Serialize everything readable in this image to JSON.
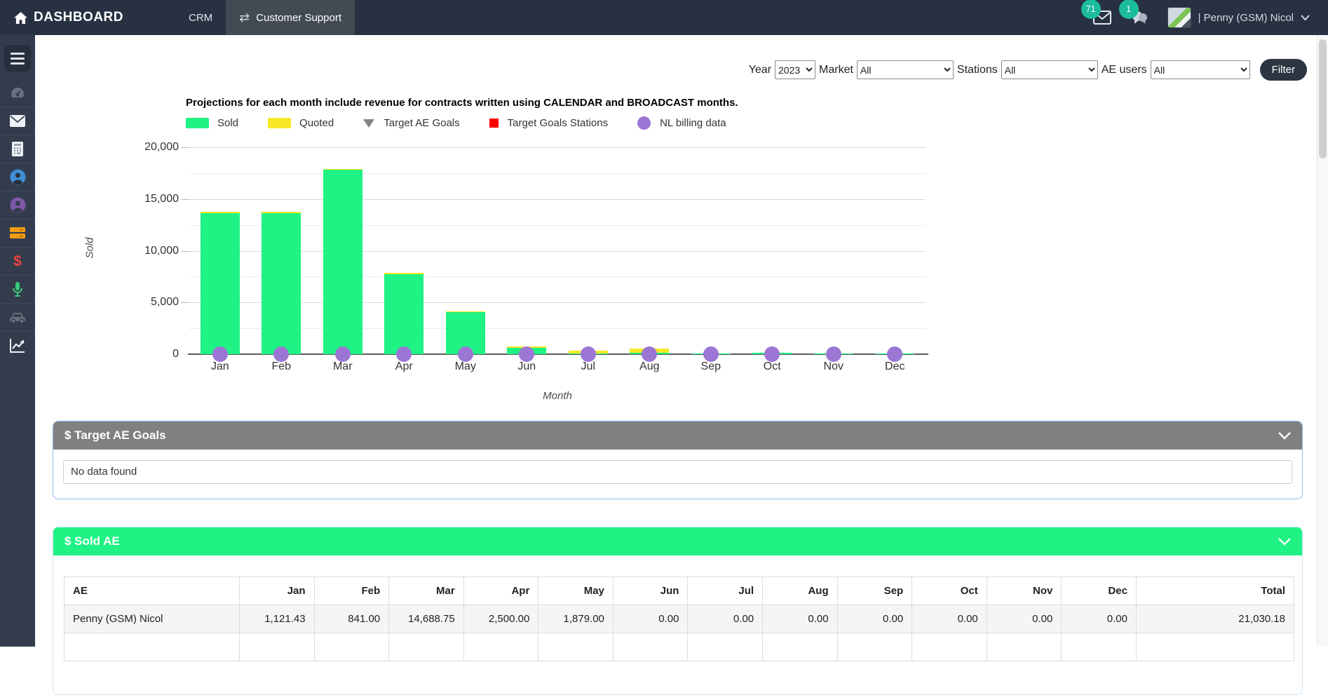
{
  "navbar": {
    "brand": "DASHBOARD",
    "tabs": [
      {
        "label": "CRM",
        "active": false
      },
      {
        "label": "Customer Support",
        "active": true
      }
    ],
    "mail_badge": "71",
    "chat_badge": "1",
    "user_label": "| Penny (GSM) Nicol"
  },
  "sidebar": {
    "items": [
      {
        "icon": "menu-icon"
      },
      {
        "icon": "dashboard-gauge-icon"
      },
      {
        "icon": "mail-icon"
      },
      {
        "icon": "calculator-icon"
      },
      {
        "icon": "customer-blue-icon"
      },
      {
        "icon": "customer-purple-icon"
      },
      {
        "icon": "server-icon"
      },
      {
        "icon": "dollar-icon"
      },
      {
        "icon": "microphone-icon"
      },
      {
        "icon": "car-icon"
      },
      {
        "icon": "chart-line-icon"
      }
    ]
  },
  "filters": {
    "year_label": "Year",
    "year_value": "2023",
    "market_label": "Market",
    "market_value": "All",
    "stations_label": "Stations",
    "stations_value": "All",
    "ae_users_label": "AE users",
    "ae_users_value": "All",
    "filter_button": "Filter"
  },
  "chart_data": {
    "type": "bar",
    "note": "Projections for each month include revenue for contracts written using CALENDAR and BROADCAST months.",
    "categories": [
      "Jan",
      "Feb",
      "Mar",
      "Apr",
      "May",
      "Jun",
      "Jul",
      "Aug",
      "Sep",
      "Oct",
      "Nov",
      "Dec"
    ],
    "series": [
      {
        "name": "Sold",
        "marker": "rect",
        "color": "#1ef383",
        "values": [
          13600,
          13650,
          17800,
          7750,
          4050,
          600,
          60,
          120,
          90,
          110,
          100,
          90
        ]
      },
      {
        "name": "Quoted",
        "marker": "rect",
        "color": "#f7e825",
        "values": [
          150,
          140,
          110,
          110,
          110,
          130,
          260,
          420,
          0,
          0,
          0,
          0
        ]
      },
      {
        "name": "Target AE Goals",
        "marker": "triangle",
        "color": "#848484",
        "values": []
      },
      {
        "name": "Target Goals Stations",
        "marker": "square",
        "color": "#ff0000",
        "values": []
      },
      {
        "name": "NL billing data",
        "marker": "circle",
        "color": "#9b76d4",
        "values": [
          0,
          0,
          0,
          0,
          0,
          0,
          0,
          0,
          0,
          0,
          0,
          0
        ]
      }
    ],
    "xlabel": "Month",
    "ylabel": "Sold",
    "ylim": [
      0,
      20000
    ],
    "ytick_step": 5000,
    "grid_step": 2500,
    "legend_position": "top",
    "grid": true
  },
  "panels": {
    "target": {
      "title": "$ Target AE Goals",
      "empty_text": "No data found"
    },
    "sold": {
      "title": "$ Sold AE",
      "table": {
        "columns": [
          "AE",
          "Jan",
          "Feb",
          "Mar",
          "Apr",
          "May",
          "Jun",
          "Jul",
          "Aug",
          "Sep",
          "Oct",
          "Nov",
          "Dec",
          "Total"
        ],
        "rows": [
          {
            "ae": "Penny (GSM) Nicol",
            "values": [
              "1,121.43",
              "841.00",
              "14,688.75",
              "2,500.00",
              "1,879.00",
              "0.00",
              "0.00",
              "0.00",
              "0.00",
              "0.00",
              "0.00",
              "0.00"
            ],
            "total": "21,030.18"
          }
        ]
      }
    }
  },
  "colors": {
    "navbar_bg": "#273142",
    "sidebar_bg": "#333c4d",
    "badge": "#1abc9c",
    "sold_green": "#1ef383",
    "quoted_yellow": "#f7e825",
    "nl_purple": "#9b76d4",
    "stations_red": "#ff0000",
    "target_gray": "#808080"
  }
}
